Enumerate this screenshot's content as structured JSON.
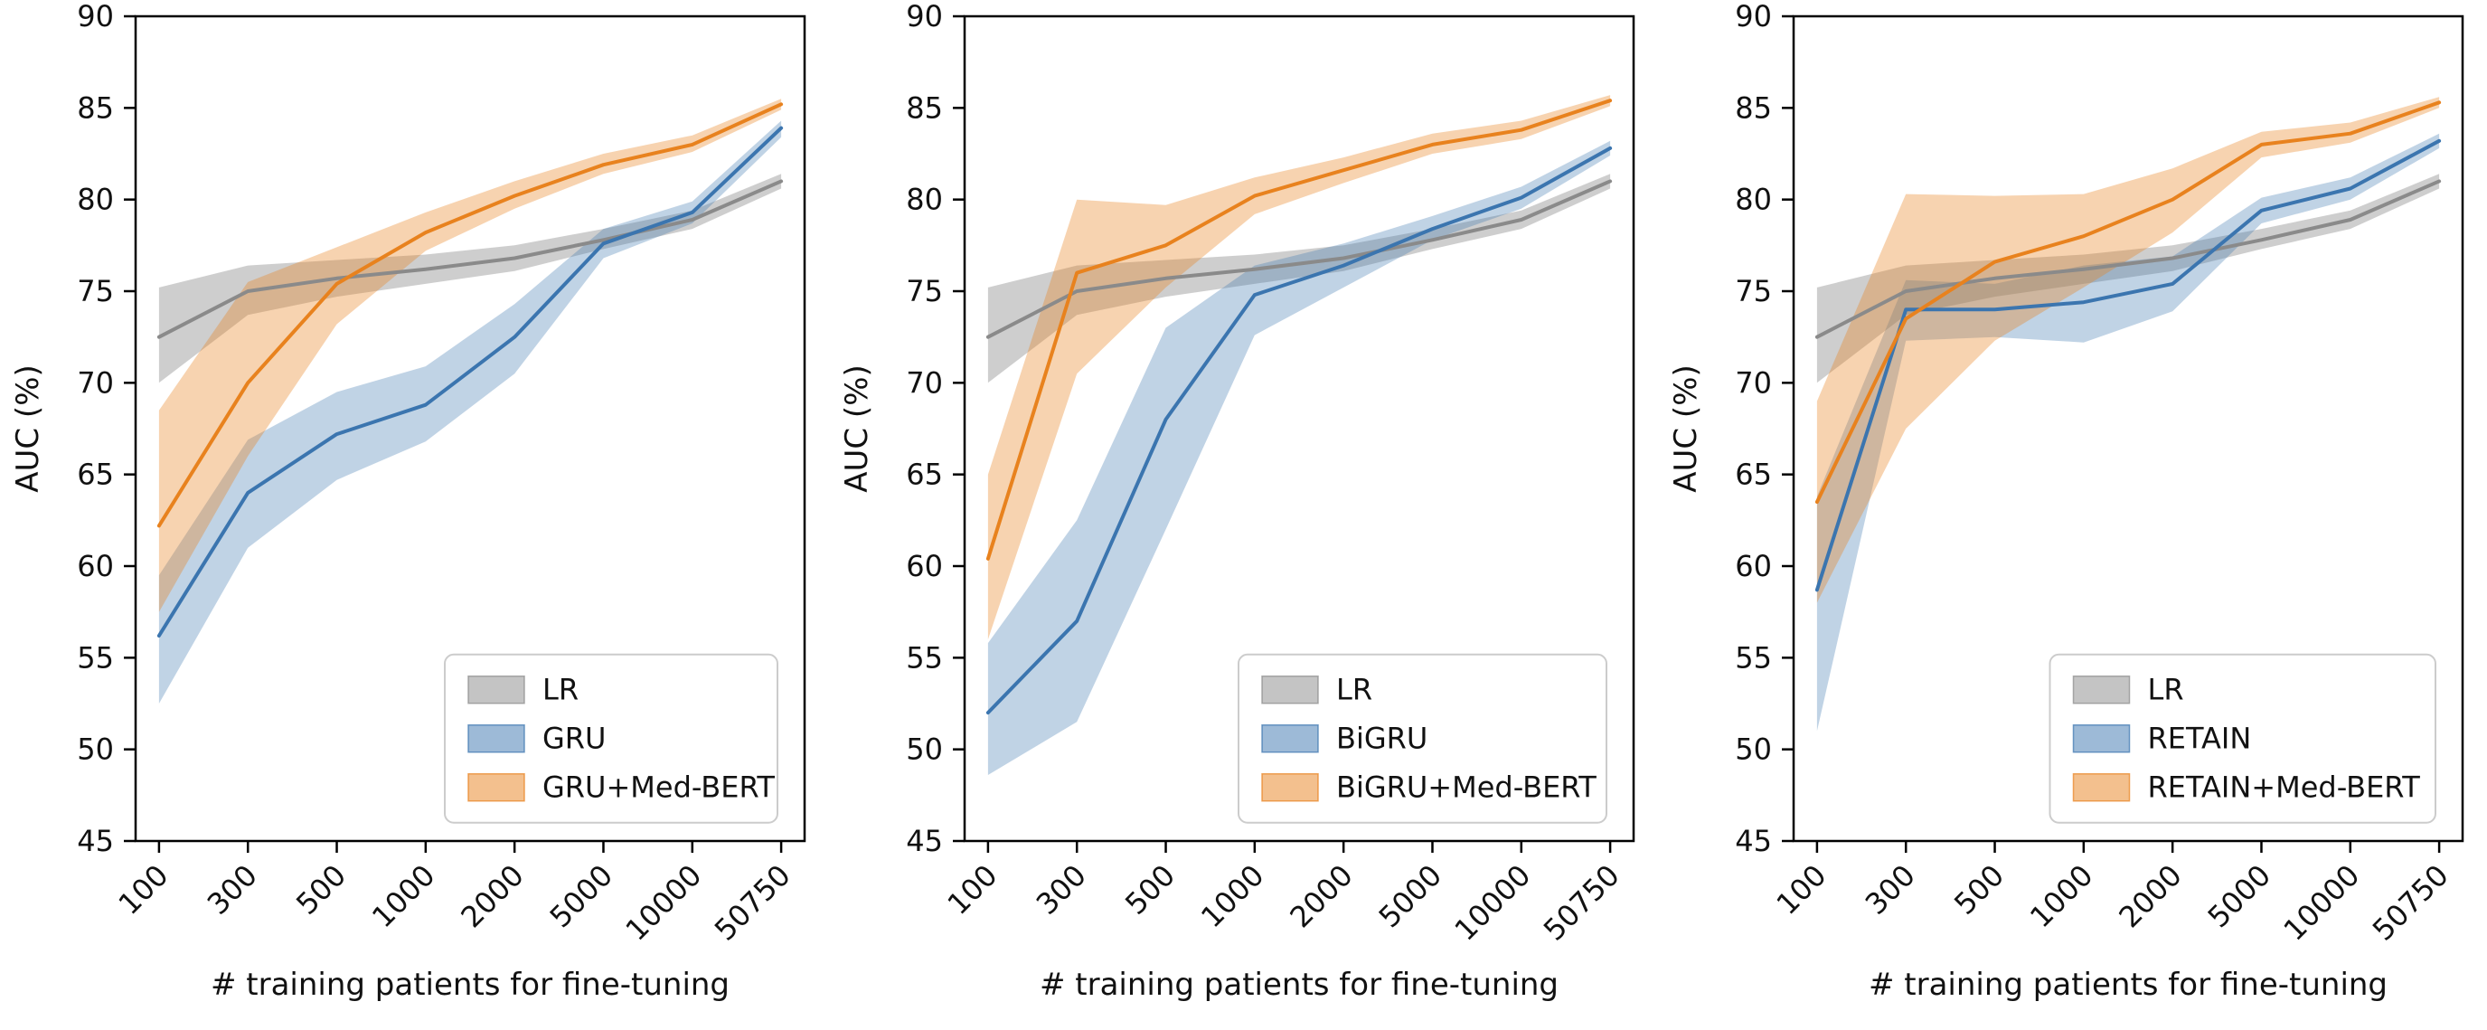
{
  "figure": {
    "background": "#ffffff",
    "text_color": "#111111",
    "spine_color": "#000000"
  },
  "colors": {
    "gray": "#8a8a8a",
    "blue": "#3b75af",
    "orange": "#e8821e",
    "legend_border": "#cccccc"
  },
  "chart_data": [
    {
      "type": "line",
      "name": "gru-panel",
      "xlabel": "# training patients for fine-tuning",
      "ylabel": "AUC (%)",
      "ylim": [
        45,
        90
      ],
      "y_ticks": [
        45,
        50,
        55,
        60,
        65,
        70,
        75,
        80,
        85,
        90
      ],
      "x_categories": [
        "100",
        "300",
        "500",
        "1000",
        "2000",
        "5000",
        "10000",
        "50750"
      ],
      "grid": false,
      "legend_position": "lower right",
      "series": [
        {
          "name": "LR",
          "color": "#8a8a8a",
          "band_opacity": 0.42,
          "values": [
            72.5,
            75.0,
            75.7,
            76.2,
            76.8,
            77.8,
            78.9,
            81.0
          ],
          "band_lower": [
            70.0,
            73.7,
            74.7,
            75.4,
            76.1,
            77.3,
            78.4,
            80.6
          ],
          "band_upper": [
            75.2,
            76.4,
            76.7,
            77.0,
            77.5,
            78.4,
            79.4,
            81.4
          ]
        },
        {
          "name": "GRU",
          "color": "#3b75af",
          "band_opacity": 0.32,
          "values": [
            56.2,
            64.0,
            67.2,
            68.8,
            72.5,
            77.6,
            79.3,
            83.9
          ],
          "band_lower": [
            52.5,
            61.0,
            64.7,
            66.8,
            70.5,
            76.8,
            78.7,
            83.4
          ],
          "band_upper": [
            59.5,
            66.9,
            69.5,
            70.9,
            74.3,
            78.4,
            79.9,
            84.3
          ]
        },
        {
          "name": "GRU+Med-BERT",
          "color": "#e8821e",
          "band_opacity": 0.35,
          "values": [
            62.2,
            70.0,
            75.4,
            78.2,
            80.2,
            81.9,
            83.0,
            85.2
          ],
          "band_lower": [
            57.5,
            66.0,
            73.2,
            77.2,
            79.5,
            81.4,
            82.6,
            84.9
          ],
          "band_upper": [
            68.5,
            75.5,
            77.4,
            79.3,
            81.0,
            82.5,
            83.5,
            85.5
          ]
        }
      ]
    },
    {
      "type": "line",
      "name": "bigru-panel",
      "xlabel": "# training patients for fine-tuning",
      "ylabel": "AUC (%)",
      "ylim": [
        45,
        90
      ],
      "y_ticks": [
        45,
        50,
        55,
        60,
        65,
        70,
        75,
        80,
        85,
        90
      ],
      "x_categories": [
        "100",
        "300",
        "500",
        "1000",
        "2000",
        "5000",
        "10000",
        "50750"
      ],
      "grid": false,
      "legend_position": "lower right",
      "series": [
        {
          "name": "LR",
          "color": "#8a8a8a",
          "band_opacity": 0.42,
          "values": [
            72.5,
            75.0,
            75.7,
            76.2,
            76.8,
            77.8,
            78.9,
            81.0
          ],
          "band_lower": [
            70.0,
            73.7,
            74.7,
            75.4,
            76.1,
            77.3,
            78.4,
            80.6
          ],
          "band_upper": [
            75.2,
            76.4,
            76.7,
            77.0,
            77.5,
            78.4,
            79.4,
            81.4
          ]
        },
        {
          "name": "BiGRU",
          "color": "#3b75af",
          "band_opacity": 0.32,
          "values": [
            52.0,
            57.0,
            68.0,
            74.8,
            76.4,
            78.4,
            80.1,
            82.8
          ],
          "band_lower": [
            48.6,
            51.5,
            62.0,
            72.6,
            75.2,
            77.8,
            79.5,
            82.4
          ],
          "band_upper": [
            55.8,
            62.5,
            73.0,
            76.4,
            77.6,
            79.1,
            80.7,
            83.2
          ]
        },
        {
          "name": "BiGRU+Med-BERT",
          "color": "#e8821e",
          "band_opacity": 0.35,
          "values": [
            60.4,
            76.0,
            77.5,
            80.2,
            81.6,
            83.0,
            83.8,
            85.4
          ],
          "band_lower": [
            56.0,
            70.5,
            75.2,
            79.2,
            80.9,
            82.5,
            83.3,
            85.1
          ],
          "band_upper": [
            65.0,
            80.0,
            79.7,
            81.2,
            82.3,
            83.6,
            84.3,
            85.7
          ]
        }
      ]
    },
    {
      "type": "line",
      "name": "retain-panel",
      "xlabel": "# training patients for fine-tuning",
      "ylabel": "AUC (%)",
      "ylim": [
        45,
        90
      ],
      "y_ticks": [
        45,
        50,
        55,
        60,
        65,
        70,
        75,
        80,
        85,
        90
      ],
      "x_categories": [
        "100",
        "300",
        "500",
        "1000",
        "2000",
        "5000",
        "10000",
        "50750"
      ],
      "grid": false,
      "legend_position": "lower right",
      "series": [
        {
          "name": "LR",
          "color": "#8a8a8a",
          "band_opacity": 0.42,
          "values": [
            72.5,
            75.0,
            75.7,
            76.2,
            76.8,
            77.8,
            78.9,
            81.0
          ],
          "band_lower": [
            70.0,
            73.7,
            74.7,
            75.4,
            76.1,
            77.3,
            78.4,
            80.6
          ],
          "band_upper": [
            75.2,
            76.4,
            76.7,
            77.0,
            77.5,
            78.4,
            79.4,
            81.4
          ]
        },
        {
          "name": "RETAIN",
          "color": "#3b75af",
          "band_opacity": 0.32,
          "values": [
            58.7,
            74.0,
            74.0,
            74.4,
            75.4,
            79.4,
            80.6,
            83.2
          ],
          "band_lower": [
            51.0,
            72.3,
            72.5,
            72.2,
            73.9,
            78.7,
            80.0,
            82.8
          ],
          "band_upper": [
            63.8,
            75.6,
            75.4,
            76.4,
            76.9,
            80.1,
            81.2,
            83.6
          ]
        },
        {
          "name": "RETAIN+Med-BERT",
          "color": "#e8821e",
          "band_opacity": 0.35,
          "values": [
            63.5,
            73.5,
            76.6,
            78.0,
            80.0,
            83.0,
            83.6,
            85.3
          ],
          "band_lower": [
            58.0,
            67.5,
            72.3,
            75.2,
            78.2,
            82.3,
            83.1,
            85.0
          ],
          "band_upper": [
            69.0,
            80.3,
            80.2,
            80.3,
            81.7,
            83.7,
            84.2,
            85.6
          ]
        }
      ]
    }
  ]
}
